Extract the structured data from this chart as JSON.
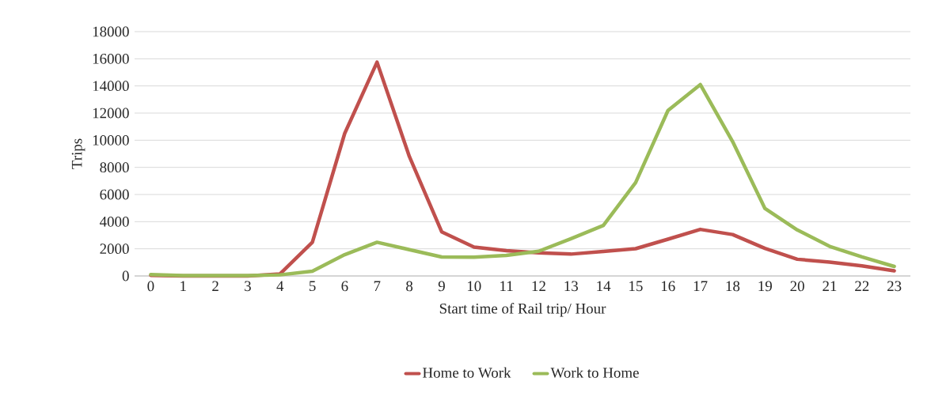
{
  "chart_data": {
    "type": "line",
    "xlabel": "Start time of Rail trip/ Hour",
    "ylabel": "Trips",
    "categories": [
      "0",
      "1",
      "2",
      "3",
      "4",
      "5",
      "6",
      "7",
      "8",
      "9",
      "10",
      "11",
      "12",
      "13",
      "14",
      "15",
      "16",
      "17",
      "18",
      "19",
      "20",
      "21",
      "22",
      "23"
    ],
    "series": [
      {
        "name": "Home to Work",
        "color": "#c0504d",
        "values": [
          50,
          0,
          0,
          0,
          150,
          2480,
          10500,
          15750,
          8800,
          3250,
          2130,
          1860,
          1710,
          1610,
          1800,
          2010,
          2710,
          3430,
          3050,
          2030,
          1230,
          1020,
          740,
          380
        ]
      },
      {
        "name": "Work to Home",
        "color": "#9bbb59",
        "values": [
          100,
          30,
          30,
          30,
          80,
          350,
          1570,
          2480,
          1940,
          1400,
          1380,
          1510,
          1820,
          2750,
          3720,
          6880,
          12190,
          14100,
          9900,
          4970,
          3390,
          2180,
          1400,
          700
        ]
      }
    ],
    "ylim": [
      0,
      18000
    ],
    "yticks": [
      0,
      2000,
      4000,
      6000,
      8000,
      10000,
      12000,
      14000,
      16000,
      18000
    ],
    "grid": "y",
    "legend": "bottom"
  }
}
